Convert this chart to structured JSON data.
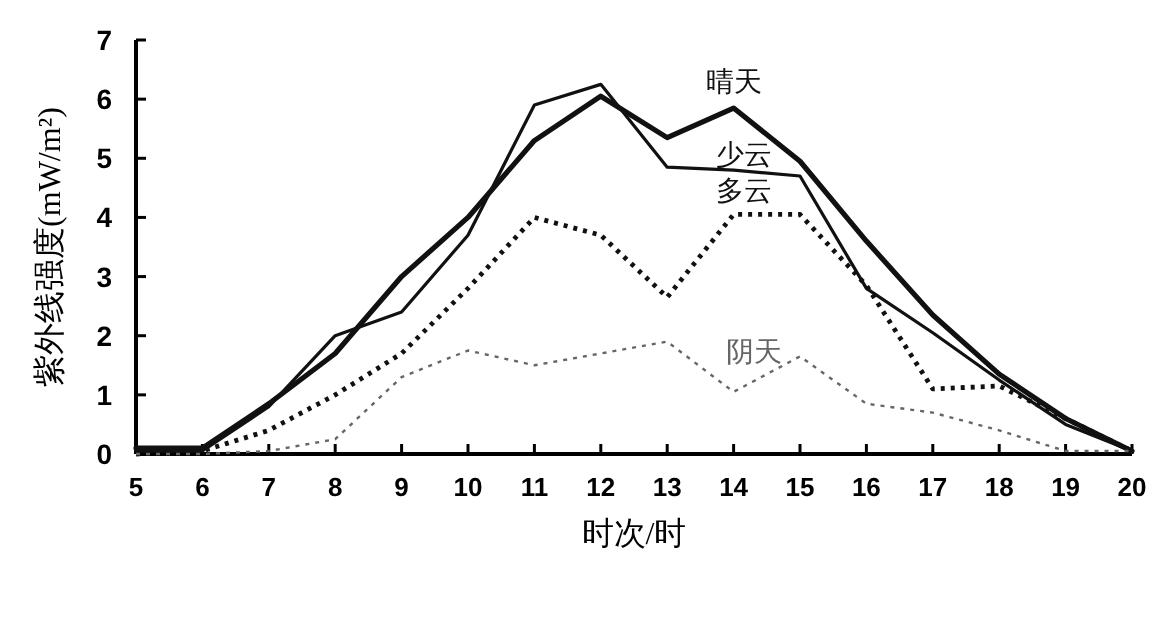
{
  "chart_data": {
    "type": "line",
    "xlabel": "时次/时",
    "ylabel": "紫外线强度(mW/m²)",
    "x": [
      5,
      6,
      7,
      8,
      9,
      10,
      11,
      12,
      13,
      14,
      15,
      16,
      17,
      18,
      19,
      20
    ],
    "xlim": [
      5,
      20
    ],
    "xticks": [
      5,
      6,
      7,
      8,
      9,
      10,
      11,
      12,
      13,
      14,
      15,
      16,
      17,
      18,
      19,
      20
    ],
    "ylim": [
      0,
      7
    ],
    "yticks": [
      0,
      1,
      2,
      3,
      4,
      5,
      6,
      7
    ],
    "grid": false,
    "marker": "none",
    "series": [
      {
        "name": "晴天",
        "color": "#111111",
        "line_style": "solid",
        "values": [
          0.1,
          0.1,
          0.85,
          1.7,
          3.0,
          4.0,
          5.3,
          6.05,
          5.35,
          5.85,
          4.95,
          3.6,
          2.35,
          1.35,
          0.6,
          0.05
        ]
      },
      {
        "name": "少云",
        "color": "#111111",
        "line_style": "solid",
        "values": [
          0.05,
          0.05,
          0.8,
          2.0,
          2.4,
          3.7,
          5.9,
          6.25,
          4.85,
          4.8,
          4.7,
          2.8,
          2.05,
          1.25,
          0.5,
          0.05
        ]
      },
      {
        "name": "多云",
        "color": "#111111",
        "line_style": "dotted",
        "values": [
          0,
          0.05,
          0.4,
          1.0,
          1.7,
          2.8,
          4.0,
          3.7,
          2.65,
          4.05,
          4.05,
          2.85,
          1.1,
          1.15,
          0.6,
          0.05
        ]
      },
      {
        "name": "阴天",
        "color": "#666666",
        "line_style": "dotted",
        "values": [
          0,
          0,
          0.05,
          0.25,
          1.3,
          1.75,
          1.5,
          1.7,
          1.9,
          1.05,
          1.65,
          0.85,
          0.7,
          0.4,
          0.05,
          0.05
        ]
      }
    ]
  }
}
